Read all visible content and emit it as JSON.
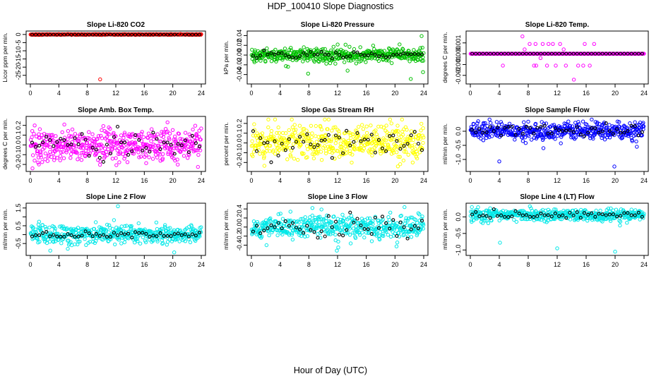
{
  "title": "HDP_100410  Slope Diagnostics",
  "xlabel": "Hour of Day (UTC)",
  "colors": {
    "reference": "#000000",
    "frame": "#000000"
  },
  "chart_data": [
    {
      "type": "scatter",
      "title": "Slope Li-820 CO2",
      "ylabel": "Licor ppm per min.",
      "color": "#ff0000",
      "xlim": [
        0,
        24
      ],
      "ylim": [
        -29,
        0.8
      ],
      "xticks": [
        0,
        4,
        8,
        12,
        16,
        20,
        24
      ],
      "yticks": [
        0,
        -5,
        -10,
        -15,
        -20,
        -25
      ],
      "ytick_labels": [
        "0",
        "-5",
        "-10",
        "-15",
        "-20",
        "-25"
      ],
      "series_description": "dense band near 0 with rare outliers",
      "base": 0,
      "spread": 0.12,
      "black_spread": 0.08,
      "outliers": [
        [
          9.8,
          -27.5
        ],
        [
          21.1,
          0.3
        ]
      ]
    },
    {
      "type": "scatter",
      "title": "Slope Li-820 Pressure",
      "ylabel": "kPa per min.",
      "color": "#00c000",
      "xlim": [
        0,
        24
      ],
      "ylim": [
        -0.055,
        0.045
      ],
      "xticks": [
        0,
        4,
        8,
        12,
        16,
        20,
        24
      ],
      "yticks": [
        -0.04,
        -0.02,
        0.0,
        0.02,
        0.04
      ],
      "ytick_labels": [
        "-0.04",
        "-0.02",
        "0.00",
        "0.02",
        "0.04"
      ],
      "base": 0,
      "spread": 0.007,
      "black_spread": 0.004,
      "trend": 0.0006,
      "outliers": [
        [
          23.7,
          0.039
        ],
        [
          22.2,
          -0.049
        ],
        [
          7.9,
          -0.038
        ],
        [
          23.9,
          -0.035
        ],
        [
          13.4,
          -0.032
        ]
      ]
    },
    {
      "type": "scatter",
      "title": "Slope Li-820 Temp.",
      "ylabel": "degrees C per min.",
      "color": "#ff00ff",
      "xlim": [
        0,
        24
      ],
      "ylim": [
        -0.0026,
        0.0019
      ],
      "xticks": [
        0,
        4,
        8,
        12,
        16,
        20,
        24
      ],
      "yticks": [
        -0.002,
        -0.001,
        0.0,
        0.001
      ],
      "ytick_labels": [
        "-0.002",
        "-0.001",
        "0.000",
        "0.001"
      ],
      "base": 0,
      "spread": 0,
      "black_spread": 0,
      "discrete": true,
      "outliers": [
        [
          7.2,
          0.0016
        ],
        [
          9,
          0.0009
        ],
        [
          10,
          0.0009
        ],
        [
          10.8,
          0.0009
        ],
        [
          12.4,
          0.0009
        ],
        [
          15.8,
          0.0009
        ],
        [
          17.1,
          0.0009
        ],
        [
          8.2,
          0.0009
        ],
        [
          11.4,
          0.0009
        ],
        [
          4.5,
          -0.0011
        ],
        [
          8.8,
          -0.0011
        ],
        [
          10.6,
          -0.0011
        ],
        [
          11.8,
          -0.0011
        ],
        [
          13.2,
          -0.0011
        ],
        [
          14.9,
          -0.0011
        ],
        [
          15.6,
          -0.0011
        ],
        [
          16.5,
          -0.0011
        ],
        [
          9.1,
          -0.0011
        ],
        [
          14.3,
          -0.0024
        ],
        [
          7.5,
          0.0004
        ],
        [
          9.7,
          -0.0004
        ],
        [
          12.9,
          0.0004
        ]
      ]
    },
    {
      "type": "scatter",
      "title": "Slope Amb. Box Temp.",
      "ylabel": "degrees C per min.",
      "color": "#ff00ff",
      "xlim": [
        0,
        24
      ],
      "ylim": [
        -0.25,
        0.27
      ],
      "xticks": [
        0,
        4,
        8,
        12,
        16,
        20,
        24
      ],
      "yticks": [
        -0.2,
        -0.1,
        0.0,
        0.1,
        0.2
      ],
      "ytick_labels": [
        "-0.2",
        "-0.1",
        "0.0",
        "0.1",
        "0.2"
      ],
      "base": 0,
      "spread": 0.085,
      "black_spread": 0.07,
      "outliers": [
        [
          0.3,
          -0.24
        ],
        [
          1.2,
          -0.2
        ]
      ]
    },
    {
      "type": "scatter",
      "title": "Slope Gas Stream RH",
      "ylabel": "percent per min.",
      "color": "#ffff00",
      "xlim": [
        0,
        24
      ],
      "ylim": [
        -0.27,
        0.25
      ],
      "xticks": [
        0,
        4,
        8,
        12,
        16,
        20,
        24
      ],
      "yticks": [
        -0.2,
        -0.1,
        0.0,
        0.1,
        0.2
      ],
      "ytick_labels": [
        "-0.2",
        "-0.1",
        "0.0",
        "0.1",
        "0.2"
      ],
      "base": 0,
      "spread": 0.085,
      "black_spread": 0.07,
      "outliers": [
        [
          19.5,
          0.2
        ],
        [
          20.4,
          -0.24
        ]
      ]
    },
    {
      "type": "scatter",
      "title": "Slope Sample Flow",
      "ylabel": "ml/min per min.",
      "color": "#0000ff",
      "xlim": [
        0,
        24
      ],
      "ylim": [
        -1.35,
        0.45
      ],
      "xticks": [
        0,
        4,
        8,
        12,
        16,
        20,
        24
      ],
      "yticks": [
        -1.0,
        -0.5,
        0.0
      ],
      "ytick_labels": [
        "-1.0",
        "-0.5",
        "0.0"
      ],
      "base": 0,
      "spread": 0.15,
      "black_spread": 0.1,
      "outliers": [
        [
          4.0,
          -1.07
        ],
        [
          19.9,
          -1.25
        ],
        [
          17.3,
          0.33
        ],
        [
          10.1,
          -0.6
        ],
        [
          23.0,
          -0.55
        ]
      ]
    },
    {
      "type": "scatter",
      "title": "Slope Line 2 Flow",
      "ylabel": "ml/min per min.",
      "color": "#00e8e8",
      "xlim": [
        0,
        24
      ],
      "ylim": [
        -1.05,
        1.65
      ],
      "xticks": [
        0,
        4,
        8,
        12,
        16,
        20,
        24
      ],
      "yticks": [
        -0.5,
        0.0,
        0.5,
        1.0,
        1.5
      ],
      "ytick_labels": [
        "-0.5",
        "0.5",
        "1.5"
      ],
      "ytick_label_values": [
        -0.5,
        0.5,
        1.5
      ],
      "base": 0,
      "spread": 0.26,
      "black_spread": 0.1,
      "outliers": [
        [
          12.3,
          1.6
        ],
        [
          2.8,
          -0.9
        ],
        [
          20.2,
          -1.0
        ]
      ]
    },
    {
      "type": "scatter",
      "title": "Slope Line 3 Flow",
      "ylabel": "ml/min per min.",
      "color": "#00e8e8",
      "xlim": [
        0,
        24
      ],
      "ylim": [
        -0.58,
        0.48
      ],
      "xticks": [
        0,
        4,
        8,
        12,
        16,
        20,
        24
      ],
      "yticks": [
        -0.4,
        -0.2,
        0.0,
        0.2,
        0.4
      ],
      "ytick_labels": [
        "-0.4",
        "-0.2",
        "0.0",
        "0.2",
        "0.4"
      ],
      "base": 0,
      "spread": 0.12,
      "black_spread": 0.12,
      "outliers": [
        [
          11.9,
          -0.52
        ],
        [
          12.1,
          -0.45
        ],
        [
          2.1,
          -0.4
        ],
        [
          8.5,
          0.42
        ]
      ]
    },
    {
      "type": "scatter",
      "title": "Slope Line 4 (LT) Flow",
      "ylabel": "ml/min per min.",
      "color": "#00e8e8",
      "xlim": [
        0,
        24
      ],
      "ylim": [
        -1.1,
        0.35
      ],
      "xticks": [
        0,
        4,
        8,
        12,
        16,
        20,
        24
      ],
      "yticks": [
        -1.0,
        -0.5,
        0.0
      ],
      "ytick_labels": [
        "-1.0",
        "-0.5",
        "0.0"
      ],
      "base": 0.05,
      "spread": 0.09,
      "black_spread": 0.06,
      "outliers": [
        [
          4.1,
          -0.78
        ],
        [
          12.0,
          -0.95
        ],
        [
          20.0,
          -1.05
        ]
      ]
    }
  ]
}
